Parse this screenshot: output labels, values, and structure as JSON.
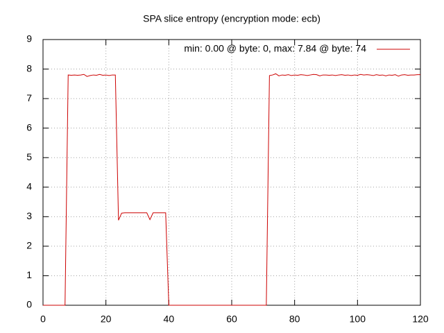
{
  "chart_data": {
    "type": "line",
    "title": "SPA slice entropy (encryption mode: ecb)",
    "x": [
      0,
      1,
      2,
      3,
      4,
      5,
      6,
      7,
      8,
      9,
      10,
      11,
      12,
      13,
      14,
      15,
      16,
      17,
      18,
      19,
      20,
      21,
      22,
      23,
      24,
      25,
      26,
      27,
      28,
      29,
      30,
      31,
      32,
      33,
      34,
      35,
      36,
      37,
      38,
      39,
      40,
      41,
      42,
      43,
      44,
      45,
      46,
      47,
      48,
      49,
      50,
      51,
      52,
      53,
      54,
      55,
      56,
      57,
      58,
      59,
      60,
      61,
      62,
      63,
      64,
      65,
      66,
      67,
      68,
      69,
      70,
      71,
      72,
      73,
      74,
      75,
      76,
      77,
      78,
      79,
      80,
      81,
      82,
      83,
      84,
      85,
      86,
      87,
      88,
      89,
      90,
      91,
      92,
      93,
      94,
      95,
      96,
      97,
      98,
      99,
      100,
      101,
      102,
      103,
      104,
      105,
      106,
      107,
      108,
      109,
      110,
      111,
      112,
      113,
      114,
      115,
      116,
      117,
      118,
      119,
      120
    ],
    "series": [
      {
        "name": "min: 0.00 @ byte: 0, max: 7.84 @ byte: 74",
        "color": "#cc0000",
        "values": [
          0,
          0,
          0,
          0,
          0,
          0,
          0,
          0,
          7.8,
          7.79,
          7.8,
          7.79,
          7.8,
          7.82,
          7.75,
          7.78,
          7.8,
          7.79,
          7.82,
          7.79,
          7.8,
          7.78,
          7.8,
          7.8,
          2.88,
          3.12,
          3.13,
          3.13,
          3.13,
          3.13,
          3.13,
          3.13,
          3.13,
          3.13,
          2.9,
          3.13,
          3.13,
          3.13,
          3.13,
          3.13,
          0,
          0,
          0,
          0,
          0,
          0,
          0,
          0,
          0,
          0,
          0,
          0,
          0,
          0,
          0,
          0,
          0,
          0,
          0,
          0,
          0,
          0,
          0,
          0,
          0,
          0,
          0,
          0,
          0,
          0,
          0,
          0,
          7.78,
          7.8,
          7.84,
          7.77,
          7.8,
          7.79,
          7.81,
          7.78,
          7.8,
          7.79,
          7.81,
          7.8,
          7.78,
          7.8,
          7.82,
          7.81,
          7.77,
          7.8,
          7.8,
          7.79,
          7.8,
          7.78,
          7.8,
          7.81,
          7.79,
          7.8,
          7.78,
          7.8,
          7.79,
          7.82,
          7.8,
          7.81,
          7.8,
          7.78,
          7.81,
          7.79,
          7.8,
          7.77,
          7.8,
          7.79,
          7.81,
          7.76,
          7.8,
          7.81,
          7.79,
          7.8,
          7.8,
          7.81,
          7.81
        ]
      }
    ],
    "xlim": [
      0,
      120
    ],
    "xticks": [
      0,
      20,
      40,
      60,
      80,
      100,
      120
    ],
    "ylim": [
      0,
      9
    ],
    "yticks": [
      0,
      1,
      2,
      3,
      4,
      5,
      6,
      7,
      8,
      9
    ],
    "grid": true,
    "legend": "top-right"
  }
}
